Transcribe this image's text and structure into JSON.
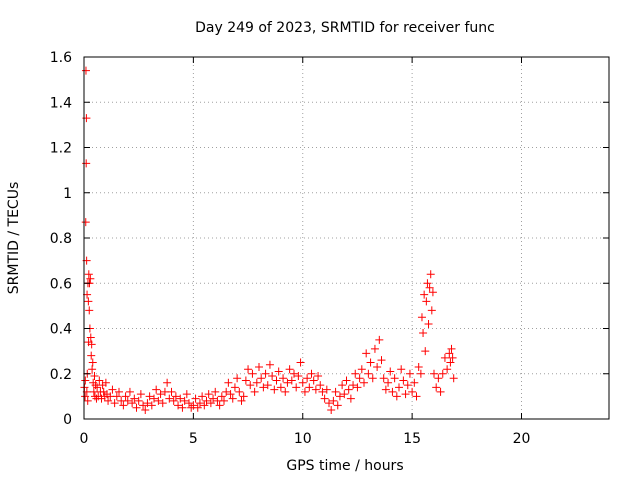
{
  "chart_data": {
    "type": "scatter",
    "title": "Day 249 of 2023, SRMTID for receiver func",
    "xlabel": "GPS time / hours",
    "ylabel": "SRMTID / TECUs",
    "xlim": [
      0,
      24
    ],
    "ylim": [
      0,
      1.6
    ],
    "xticks": [
      0,
      5,
      10,
      15,
      20
    ],
    "xtick_labels": [
      "0",
      "5",
      "10",
      "15",
      "20"
    ],
    "yticks": [
      0,
      0.2,
      0.4,
      0.6,
      0.8,
      1.0,
      1.2,
      1.4,
      1.6
    ],
    "ytick_labels": [
      "0",
      "0.2",
      "0.4",
      "0.6",
      "0.8",
      "1",
      "1.2",
      "1.4",
      "1.6"
    ],
    "grid": true,
    "marker": "plus",
    "color": "#ff0000",
    "series": [
      {
        "name": "SRMTID",
        "points": [
          [
            0.02,
            0.14
          ],
          [
            0.05,
            0.1
          ],
          [
            0.06,
            0.17
          ],
          [
            0.08,
            0.87
          ],
          [
            0.09,
            1.54
          ],
          [
            0.1,
            1.13
          ],
          [
            0.11,
            1.33
          ],
          [
            0.12,
            0.7
          ],
          [
            0.13,
            0.12
          ],
          [
            0.14,
            0.55
          ],
          [
            0.15,
            0.2
          ],
          [
            0.17,
            0.08
          ],
          [
            0.18,
            0.6
          ],
          [
            0.2,
            0.52
          ],
          [
            0.21,
            0.34
          ],
          [
            0.22,
            0.64
          ],
          [
            0.24,
            0.48
          ],
          [
            0.25,
            0.6
          ],
          [
            0.27,
            0.4
          ],
          [
            0.29,
            0.62
          ],
          [
            0.31,
            0.36
          ],
          [
            0.33,
            0.28
          ],
          [
            0.35,
            0.33
          ],
          [
            0.37,
            0.22
          ],
          [
            0.4,
            0.25
          ],
          [
            0.42,
            0.16
          ],
          [
            0.45,
            0.12
          ],
          [
            0.48,
            0.19
          ],
          [
            0.5,
            0.1
          ],
          [
            0.53,
            0.15
          ],
          [
            0.57,
            0.09
          ],
          [
            0.6,
            0.14
          ],
          [
            0.65,
            0.1
          ],
          [
            0.7,
            0.17
          ],
          [
            0.75,
            0.12
          ],
          [
            0.8,
            0.09
          ],
          [
            0.85,
            0.15
          ],
          [
            0.9,
            0.12
          ],
          [
            0.95,
            0.1
          ],
          [
            1.0,
            0.16
          ],
          [
            1.05,
            0.11
          ],
          [
            1.1,
            0.08
          ],
          [
            1.2,
            0.1
          ],
          [
            1.3,
            0.13
          ],
          [
            1.4,
            0.07
          ],
          [
            1.5,
            0.1
          ],
          [
            1.6,
            0.12
          ],
          [
            1.7,
            0.08
          ],
          [
            1.8,
            0.06
          ],
          [
            1.9,
            0.1
          ],
          [
            2.0,
            0.08
          ],
          [
            2.1,
            0.12
          ],
          [
            2.2,
            0.07
          ],
          [
            2.3,
            0.09
          ],
          [
            2.4,
            0.05
          ],
          [
            2.5,
            0.08
          ],
          [
            2.6,
            0.11
          ],
          [
            2.7,
            0.06
          ],
          [
            2.8,
            0.04
          ],
          [
            2.9,
            0.07
          ],
          [
            3.0,
            0.1
          ],
          [
            3.1,
            0.06
          ],
          [
            3.2,
            0.09
          ],
          [
            3.3,
            0.13
          ],
          [
            3.4,
            0.08
          ],
          [
            3.5,
            0.11
          ],
          [
            3.6,
            0.07
          ],
          [
            3.7,
            0.12
          ],
          [
            3.8,
            0.16
          ],
          [
            3.9,
            0.09
          ],
          [
            4.0,
            0.12
          ],
          [
            4.1,
            0.08
          ],
          [
            4.2,
            0.1
          ],
          [
            4.3,
            0.06
          ],
          [
            4.4,
            0.09
          ],
          [
            4.5,
            0.05
          ],
          [
            4.6,
            0.08
          ],
          [
            4.7,
            0.11
          ],
          [
            4.8,
            0.07
          ],
          [
            4.9,
            0.05
          ],
          [
            5.0,
            0.06
          ],
          [
            5.1,
            0.09
          ],
          [
            5.2,
            0.05
          ],
          [
            5.3,
            0.07
          ],
          [
            5.4,
            0.1
          ],
          [
            5.5,
            0.06
          ],
          [
            5.6,
            0.08
          ],
          [
            5.7,
            0.11
          ],
          [
            5.8,
            0.07
          ],
          [
            5.9,
            0.09
          ],
          [
            6.0,
            0.12
          ],
          [
            6.1,
            0.08
          ],
          [
            6.2,
            0.06
          ],
          [
            6.3,
            0.1
          ],
          [
            6.4,
            0.08
          ],
          [
            6.5,
            0.12
          ],
          [
            6.6,
            0.16
          ],
          [
            6.7,
            0.11
          ],
          [
            6.8,
            0.09
          ],
          [
            6.9,
            0.14
          ],
          [
            7.0,
            0.18
          ],
          [
            7.1,
            0.12
          ],
          [
            7.2,
            0.08
          ],
          [
            7.3,
            0.1
          ],
          [
            7.4,
            0.17
          ],
          [
            7.5,
            0.22
          ],
          [
            7.6,
            0.15
          ],
          [
            7.7,
            0.2
          ],
          [
            7.8,
            0.12
          ],
          [
            7.9,
            0.16
          ],
          [
            8.0,
            0.23
          ],
          [
            8.1,
            0.18
          ],
          [
            8.2,
            0.14
          ],
          [
            8.3,
            0.2
          ],
          [
            8.4,
            0.15
          ],
          [
            8.5,
            0.24
          ],
          [
            8.6,
            0.19
          ],
          [
            8.7,
            0.13
          ],
          [
            8.8,
            0.17
          ],
          [
            8.9,
            0.21
          ],
          [
            9.0,
            0.14
          ],
          [
            9.1,
            0.18
          ],
          [
            9.2,
            0.12
          ],
          [
            9.3,
            0.16
          ],
          [
            9.4,
            0.22
          ],
          [
            9.5,
            0.17
          ],
          [
            9.6,
            0.2
          ],
          [
            9.7,
            0.14
          ],
          [
            9.8,
            0.19
          ],
          [
            9.9,
            0.25
          ],
          [
            10.0,
            0.16
          ],
          [
            10.1,
            0.12
          ],
          [
            10.2,
            0.18
          ],
          [
            10.3,
            0.14
          ],
          [
            10.4,
            0.2
          ],
          [
            10.5,
            0.17
          ],
          [
            10.6,
            0.13
          ],
          [
            10.7,
            0.19
          ],
          [
            10.8,
            0.15
          ],
          [
            10.9,
            0.12
          ],
          [
            11.0,
            0.09
          ],
          [
            11.1,
            0.13
          ],
          [
            11.2,
            0.07
          ],
          [
            11.3,
            0.04
          ],
          [
            11.4,
            0.08
          ],
          [
            11.5,
            0.12
          ],
          [
            11.6,
            0.06
          ],
          [
            11.7,
            0.1
          ],
          [
            11.8,
            0.15
          ],
          [
            11.9,
            0.11
          ],
          [
            12.0,
            0.17
          ],
          [
            12.1,
            0.13
          ],
          [
            12.2,
            0.09
          ],
          [
            12.3,
            0.15
          ],
          [
            12.4,
            0.2
          ],
          [
            12.5,
            0.14
          ],
          [
            12.6,
            0.18
          ],
          [
            12.7,
            0.22
          ],
          [
            12.8,
            0.16
          ],
          [
            12.9,
            0.29
          ],
          [
            13.0,
            0.2
          ],
          [
            13.1,
            0.25
          ],
          [
            13.2,
            0.18
          ],
          [
            13.3,
            0.31
          ],
          [
            13.4,
            0.23
          ],
          [
            13.5,
            0.35
          ],
          [
            13.6,
            0.26
          ],
          [
            13.7,
            0.18
          ],
          [
            13.8,
            0.13
          ],
          [
            13.9,
            0.16
          ],
          [
            14.0,
            0.21
          ],
          [
            14.1,
            0.12
          ],
          [
            14.2,
            0.18
          ],
          [
            14.3,
            0.1
          ],
          [
            14.4,
            0.14
          ],
          [
            14.5,
            0.22
          ],
          [
            14.6,
            0.17
          ],
          [
            14.7,
            0.11
          ],
          [
            14.8,
            0.15
          ],
          [
            14.9,
            0.2
          ],
          [
            15.0,
            0.12
          ],
          [
            15.1,
            0.16
          ],
          [
            15.2,
            0.1
          ],
          [
            15.3,
            0.23
          ],
          [
            15.4,
            0.2
          ],
          [
            15.45,
            0.45
          ],
          [
            15.5,
            0.38
          ],
          [
            15.55,
            0.55
          ],
          [
            15.6,
            0.3
          ],
          [
            15.65,
            0.52
          ],
          [
            15.7,
            0.6
          ],
          [
            15.75,
            0.42
          ],
          [
            15.8,
            0.58
          ],
          [
            15.85,
            0.64
          ],
          [
            15.9,
            0.48
          ],
          [
            15.95,
            0.56
          ],
          [
            16.0,
            0.2
          ],
          [
            16.1,
            0.14
          ],
          [
            16.2,
            0.18
          ],
          [
            16.3,
            0.12
          ],
          [
            16.4,
            0.2
          ],
          [
            16.5,
            0.27
          ],
          [
            16.6,
            0.22
          ],
          [
            16.7,
            0.29
          ],
          [
            16.75,
            0.25
          ],
          [
            16.8,
            0.31
          ],
          [
            16.85,
            0.27
          ],
          [
            16.9,
            0.18
          ]
        ]
      }
    ]
  }
}
